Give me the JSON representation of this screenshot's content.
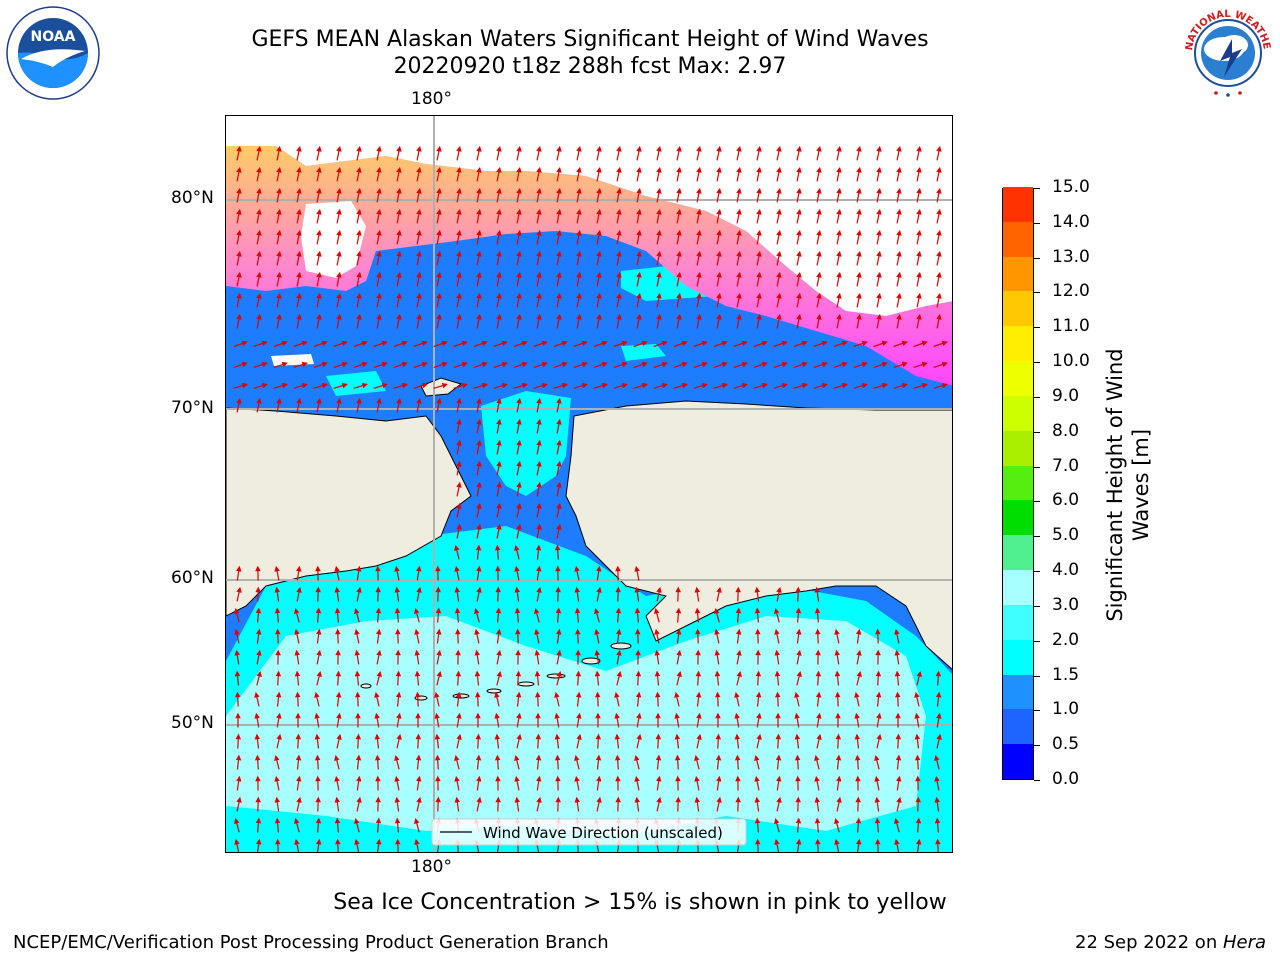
{
  "header": {
    "title_line1": "GEFS MEAN Alaskan Waters Significant Height of Wind Waves",
    "title_line2": "20220920 t18z 288h fcst   Max: 2.97"
  },
  "logos": {
    "noaa_text": "NOAA",
    "noaa_ring_text": "NATIONAL OCEANIC AND ATMOSPHERIC ADMINISTRATION · U.S. DEPARTMENT OF COMMERCE ·",
    "nws_ring_text": "NATIONAL WEATHER SERVICE"
  },
  "map": {
    "lon_label_top": "180°",
    "lon_label_bottom": "180°",
    "lat_labels": [
      "80°N",
      "70°N",
      "60°N",
      "50°N"
    ],
    "legend_label": "Wind Wave Direction (unscaled)"
  },
  "colorbar": {
    "title_line1": "Significant Height of Wind",
    "title_line2": "Waves [m]",
    "ticks": [
      "0.0",
      "0.5",
      "1.0",
      "1.5",
      "2.0",
      "3.0",
      "4.0",
      "5.0",
      "6.0",
      "7.0",
      "8.0",
      "9.0",
      "10.0",
      "11.0",
      "12.0",
      "13.0",
      "14.0",
      "15.0"
    ],
    "colors": [
      "#0000ff",
      "#1e64ff",
      "#1e90ff",
      "#00ffff",
      "#40ffff",
      "#a8ffff",
      "#50f090",
      "#00dd00",
      "#55ee11",
      "#aaee00",
      "#ccff00",
      "#eeff00",
      "#ffee00",
      "#ffc800",
      "#ff9600",
      "#ff6400",
      "#ff3200",
      "#ff0000"
    ]
  },
  "notes": {
    "sea_ice": "Sea Ice Concentration > 15% is shown in pink to yellow"
  },
  "footer": {
    "left": "NCEP/EMC/Verification Post Processing Product Generation Branch",
    "right_date": "22 Sep 2022 on ",
    "right_machine": "Hera"
  }
}
